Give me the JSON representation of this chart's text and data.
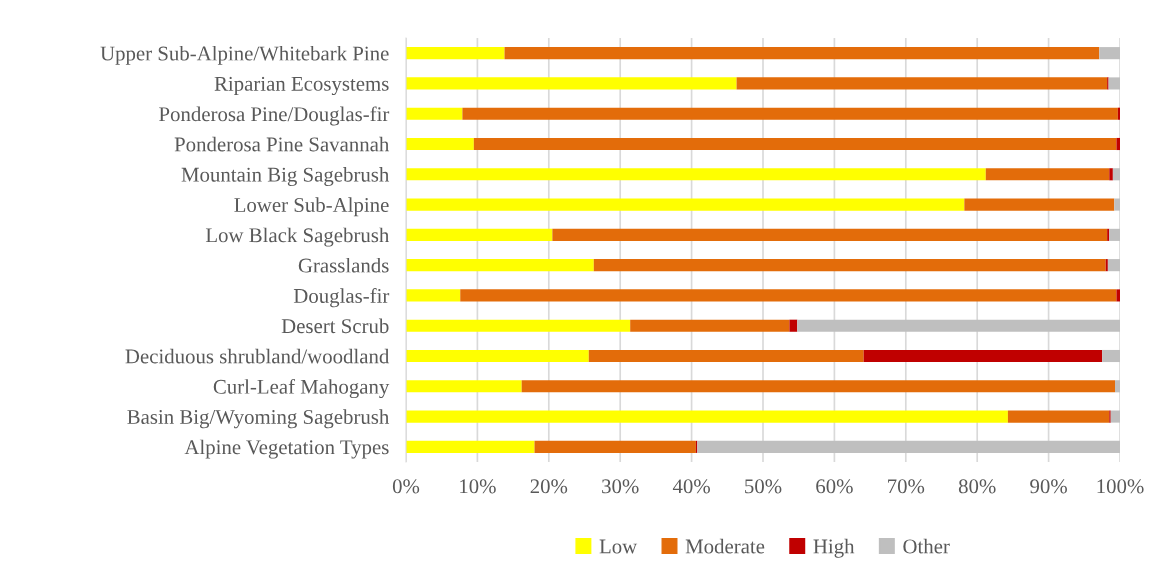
{
  "chart_data": {
    "type": "bar",
    "orientation": "horizontal",
    "stacked": true,
    "categories": [
      "Upper Sub-Alpine/Whitebark Pine",
      "Riparian Ecosystems",
      "Ponderosa Pine/Douglas-fir",
      "Ponderosa Pine Savannah",
      "Mountain Big Sagebrush",
      "Lower Sub-Alpine",
      "Low Black Sagebrush",
      "Grasslands",
      "Douglas-fir",
      "Desert Scrub",
      "Deciduous shrubland/woodland",
      "Curl-Leaf Mahogany",
      "Basin Big/Wyoming Sagebrush",
      "Alpine Vegetation Types"
    ],
    "series": [
      {
        "name": "Low",
        "color": "#ffff00",
        "values": [
          13.8,
          46.3,
          7.9,
          9.5,
          81.2,
          78.2,
          20.5,
          26.3,
          7.6,
          31.4,
          25.6,
          16.2,
          84.3,
          18.0
        ]
      },
      {
        "name": "Moderate",
        "color": "#e36c0a",
        "values": [
          83.3,
          51.9,
          91.8,
          90.0,
          17.3,
          21.0,
          77.7,
          71.7,
          91.9,
          22.3,
          38.5,
          83.1,
          14.2,
          22.6
        ]
      },
      {
        "name": "High",
        "color": "#c00000",
        "values": [
          0,
          0.2,
          0.3,
          0.5,
          0.5,
          0,
          0.3,
          0.3,
          0.5,
          1.1,
          33.4,
          0,
          0.2,
          0.2
        ]
      },
      {
        "name": "Other",
        "color": "#bfbfbf",
        "values": [
          2.9,
          1.6,
          0,
          0,
          1.0,
          0.8,
          1.5,
          1.7,
          0,
          45.2,
          2.5,
          0.7,
          1.3,
          59.2
        ]
      }
    ],
    "xlim": [
      0,
      100
    ],
    "xticks": [
      {
        "value": 0,
        "label": "0%"
      },
      {
        "value": 10,
        "label": "10%"
      },
      {
        "value": 20,
        "label": "20%"
      },
      {
        "value": 30,
        "label": "30%"
      },
      {
        "value": 40,
        "label": "40%"
      },
      {
        "value": 50,
        "label": "50%"
      },
      {
        "value": 60,
        "label": "60%"
      },
      {
        "value": 70,
        "label": "70%"
      },
      {
        "value": 80,
        "label": "80%"
      },
      {
        "value": 90,
        "label": "90%"
      },
      {
        "value": 100,
        "label": "100%"
      }
    ],
    "grid": "x",
    "legend": "bottom"
  }
}
